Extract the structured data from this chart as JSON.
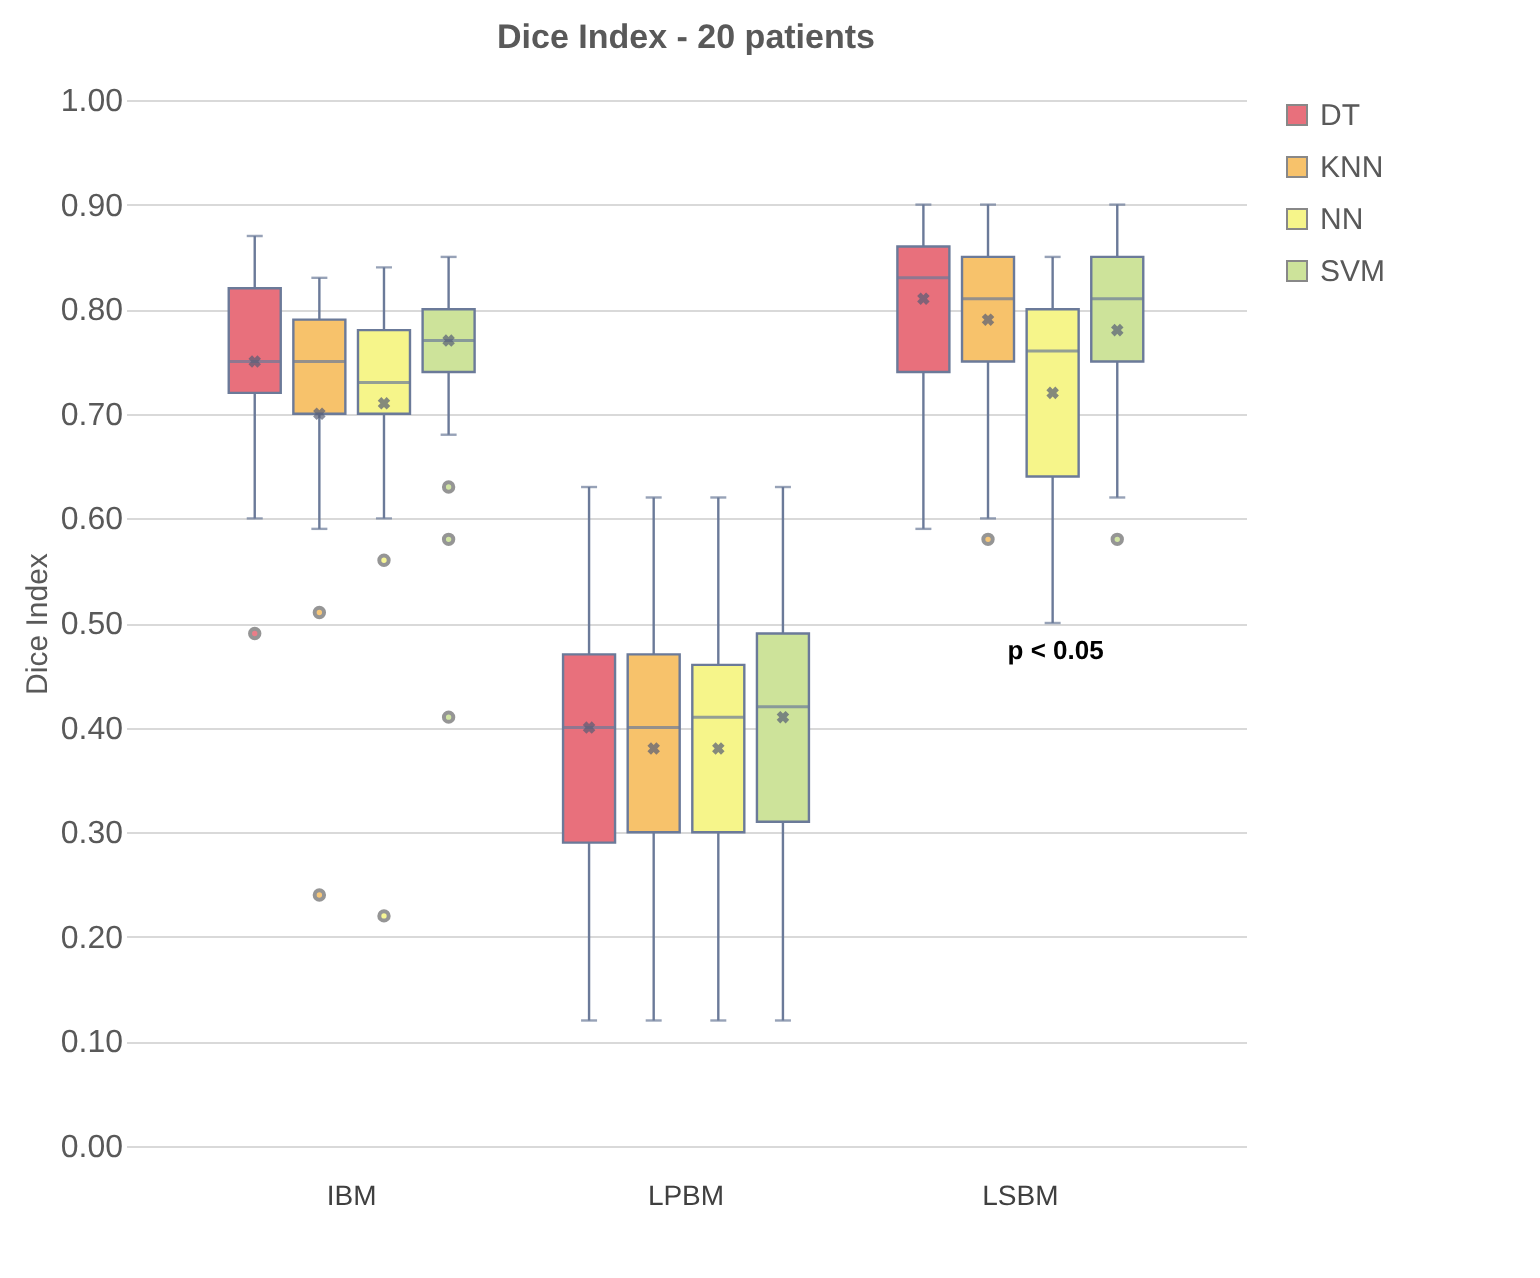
{
  "chart_data": {
    "type": "box",
    "title": "Dice Index - 20 patients",
    "ylabel": "Dice Index",
    "categories": [
      "IBM",
      "LPBM",
      "LSBM"
    ],
    "ylim": [
      0,
      1
    ],
    "yticks": [
      {
        "value": 0,
        "label": "0.00"
      },
      {
        "value": 0.1,
        "label": "0.10"
      },
      {
        "value": 0.2,
        "label": "0.20"
      },
      {
        "value": 0.3,
        "label": "0.30"
      },
      {
        "value": 0.4,
        "label": "0.40"
      },
      {
        "value": 0.5,
        "label": "0.50"
      },
      {
        "value": 0.6,
        "label": "0.60"
      },
      {
        "value": 0.7,
        "label": "0.70"
      },
      {
        "value": 0.8,
        "label": "0.80"
      },
      {
        "value": 0.9,
        "label": "0.90"
      },
      {
        "value": 1,
        "label": "1.00"
      }
    ],
    "grid": "y",
    "legend": "right",
    "annotations": [
      "p < 0.05"
    ],
    "series": [
      {
        "name": "DT",
        "color": "#e8707c",
        "boxes": [
          {
            "low": 0.6,
            "q1": 0.72,
            "median": 0.75,
            "q3": 0.82,
            "high": 0.87,
            "mean": 0.75,
            "outliers": [
              0.49
            ]
          },
          {
            "low": 0.12,
            "q1": 0.29,
            "median": 0.4,
            "q3": 0.47,
            "high": 0.63,
            "mean": 0.4
          },
          {
            "low": 0.59,
            "q1": 0.74,
            "median": 0.83,
            "q3": 0.86,
            "high": 0.9,
            "mean": 0.81
          }
        ]
      },
      {
        "name": "KNN",
        "color": "#f7c26b",
        "boxes": [
          {
            "low": 0.59,
            "q1": 0.7,
            "median": 0.75,
            "q3": 0.79,
            "high": 0.83,
            "mean": 0.7,
            "outliers": [
              0.51,
              0.24
            ]
          },
          {
            "low": 0.12,
            "q1": 0.3,
            "median": 0.4,
            "q3": 0.47,
            "high": 0.62,
            "mean": 0.38
          },
          {
            "low": 0.6,
            "q1": 0.75,
            "median": 0.81,
            "q3": 0.85,
            "high": 0.9,
            "mean": 0.79,
            "outliers": [
              0.58
            ]
          }
        ]
      },
      {
        "name": "NN",
        "color": "#f6f58a",
        "boxes": [
          {
            "low": 0.6,
            "q1": 0.7,
            "median": 0.73,
            "q3": 0.78,
            "high": 0.84,
            "mean": 0.71,
            "outliers": [
              0.56,
              0.22
            ]
          },
          {
            "low": 0.12,
            "q1": 0.3,
            "median": 0.41,
            "q3": 0.46,
            "high": 0.62,
            "mean": 0.38
          },
          {
            "low": 0.5,
            "q1": 0.64,
            "median": 0.76,
            "q3": 0.8,
            "high": 0.85,
            "mean": 0.72
          }
        ]
      },
      {
        "name": "SVM",
        "color": "#cde39a",
        "boxes": [
          {
            "low": 0.68,
            "q1": 0.74,
            "median": 0.77,
            "q3": 0.8,
            "high": 0.85,
            "mean": 0.77,
            "outliers": [
              0.63,
              0.58,
              0.41
            ]
          },
          {
            "low": 0.12,
            "q1": 0.31,
            "median": 0.42,
            "q3": 0.49,
            "high": 0.63,
            "mean": 0.41
          },
          {
            "low": 0.62,
            "q1": 0.75,
            "median": 0.81,
            "q3": 0.85,
            "high": 0.9,
            "mean": 0.78,
            "outliers": [
              0.58
            ]
          }
        ]
      }
    ]
  }
}
